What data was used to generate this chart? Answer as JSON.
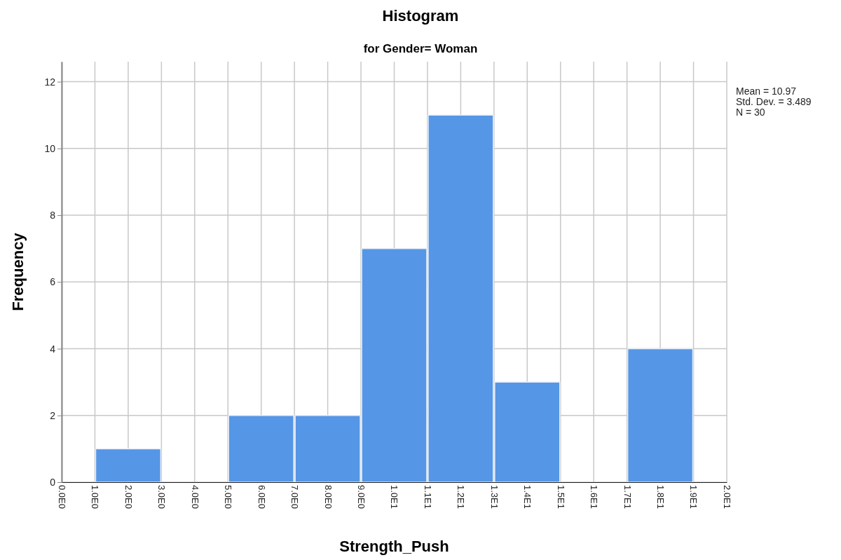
{
  "chart_data": {
    "type": "histogram",
    "title": "Histogram",
    "subtitle": "for Gender= Woman",
    "xlabel": "Strength_Push",
    "ylabel": "Frequency",
    "bins": [
      1,
      3,
      5,
      7,
      9,
      11,
      13,
      15,
      17,
      19
    ],
    "values": [
      1,
      0,
      2,
      2,
      7,
      11,
      3,
      0,
      4
    ],
    "color": "#5596e6",
    "xlim": [
      0,
      20
    ],
    "xticks": [
      {
        "value": 0,
        "label": "0.0E0"
      },
      {
        "value": 1,
        "label": "1.0E0"
      },
      {
        "value": 2,
        "label": "2.0E0"
      },
      {
        "value": 3,
        "label": "3.0E0"
      },
      {
        "value": 4,
        "label": "4.0E0"
      },
      {
        "value": 5,
        "label": "5.0E0"
      },
      {
        "value": 6,
        "label": "6.0E0"
      },
      {
        "value": 7,
        "label": "7.0E0"
      },
      {
        "value": 8,
        "label": "8.0E0"
      },
      {
        "value": 9,
        "label": "9.0E0"
      },
      {
        "value": 10,
        "label": "1.0E1"
      },
      {
        "value": 11,
        "label": "1.1E1"
      },
      {
        "value": 12,
        "label": "1.2E1"
      },
      {
        "value": 13,
        "label": "1.3E1"
      },
      {
        "value": 14,
        "label": "1.4E1"
      },
      {
        "value": 15,
        "label": "1.5E1"
      },
      {
        "value": 16,
        "label": "1.6E1"
      },
      {
        "value": 17,
        "label": "1.7E1"
      },
      {
        "value": 18,
        "label": "1.8E1"
      },
      {
        "value": 19,
        "label": "1.9E1"
      },
      {
        "value": 20,
        "label": "2.0E1"
      }
    ],
    "ylim": [
      0,
      12.6
    ],
    "yticks": [
      0,
      2,
      4,
      6,
      8,
      10,
      12
    ],
    "grid": true,
    "annotations": [
      "Mean = 10.97",
      "Std. Dev. = 3.489",
      "N = 30"
    ]
  }
}
